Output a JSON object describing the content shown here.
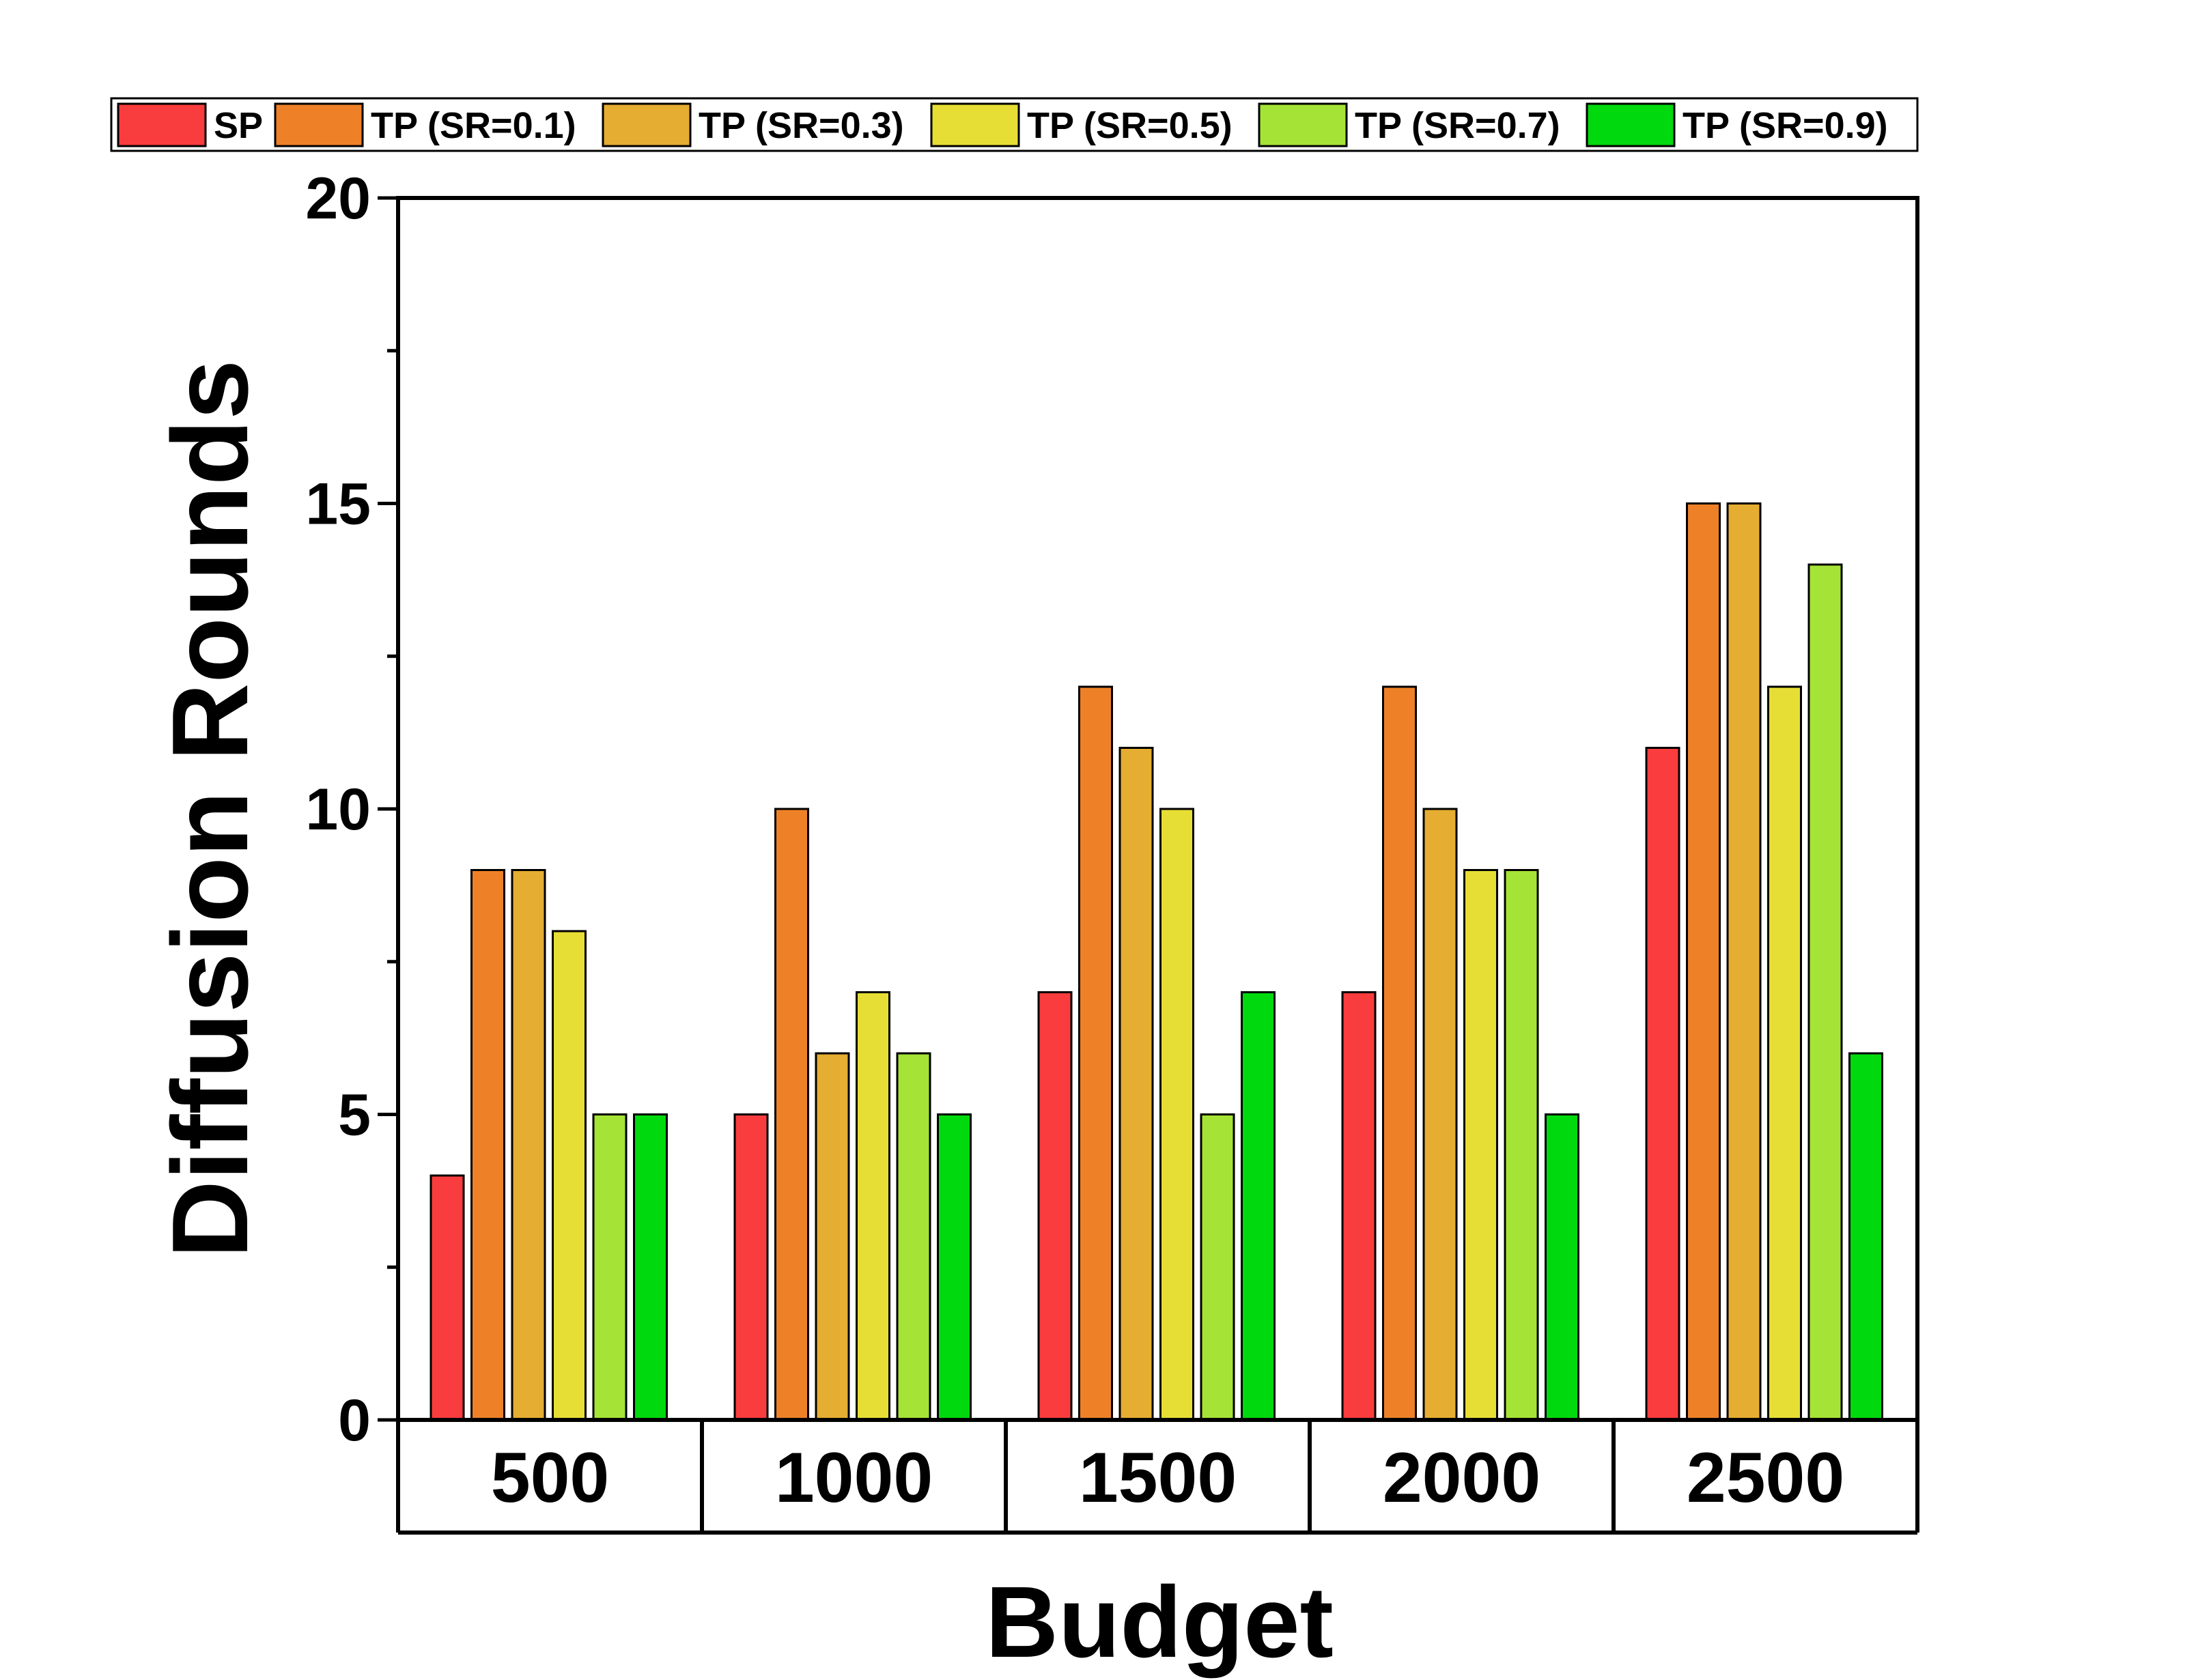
{
  "chart_data": {
    "type": "bar",
    "title": "",
    "xlabel": "Budget",
    "ylabel": "Diffusion Rounds",
    "ylim": [
      0,
      20
    ],
    "yticks": [
      "0",
      "5",
      "10",
      "15",
      "20"
    ],
    "categories": [
      "500",
      "1000",
      "1500",
      "2000",
      "2500"
    ],
    "legend_position": "top",
    "grid": false,
    "series": [
      {
        "name": "SP",
        "color": "#f93c3d",
        "values": [
          4,
          5,
          7,
          7,
          11
        ]
      },
      {
        "name": "TP (SR=0.1)",
        "color": "#ee8128",
        "values": [
          9,
          10,
          12,
          12,
          15
        ]
      },
      {
        "name": "TP (SR=0.3)",
        "color": "#e5ad31",
        "values": [
          9,
          6,
          11,
          10,
          15
        ]
      },
      {
        "name": "TP (SR=0.5)",
        "color": "#e7de35",
        "values": [
          8,
          7,
          10,
          9,
          12
        ]
      },
      {
        "name": "TP (SR=0.7)",
        "color": "#a5e336",
        "values": [
          5,
          6,
          5,
          9,
          14
        ]
      },
      {
        "name": "TP (SR=0.9)",
        "color": "#00d90e",
        "values": [
          5,
          5,
          7,
          5,
          6
        ]
      }
    ]
  }
}
